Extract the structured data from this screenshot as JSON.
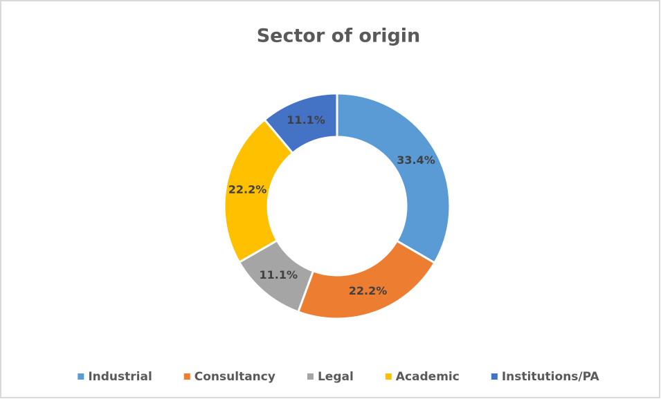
{
  "chart_data": {
    "type": "donut",
    "title": "Sector of origin",
    "categories": [
      "Industrial",
      "Consultancy",
      "Legal",
      "Academic",
      "Institutions/PA"
    ],
    "values": [
      33.4,
      22.2,
      11.1,
      22.2,
      11.1
    ],
    "value_labels": [
      "33.4%",
      "22.2%",
      "11.1%",
      "22.2%",
      "11.1%"
    ],
    "colors": [
      "#5b9bd5",
      "#ed7d31",
      "#a5a5a5",
      "#ffc000",
      "#4472c4"
    ],
    "legend": "bottom"
  }
}
